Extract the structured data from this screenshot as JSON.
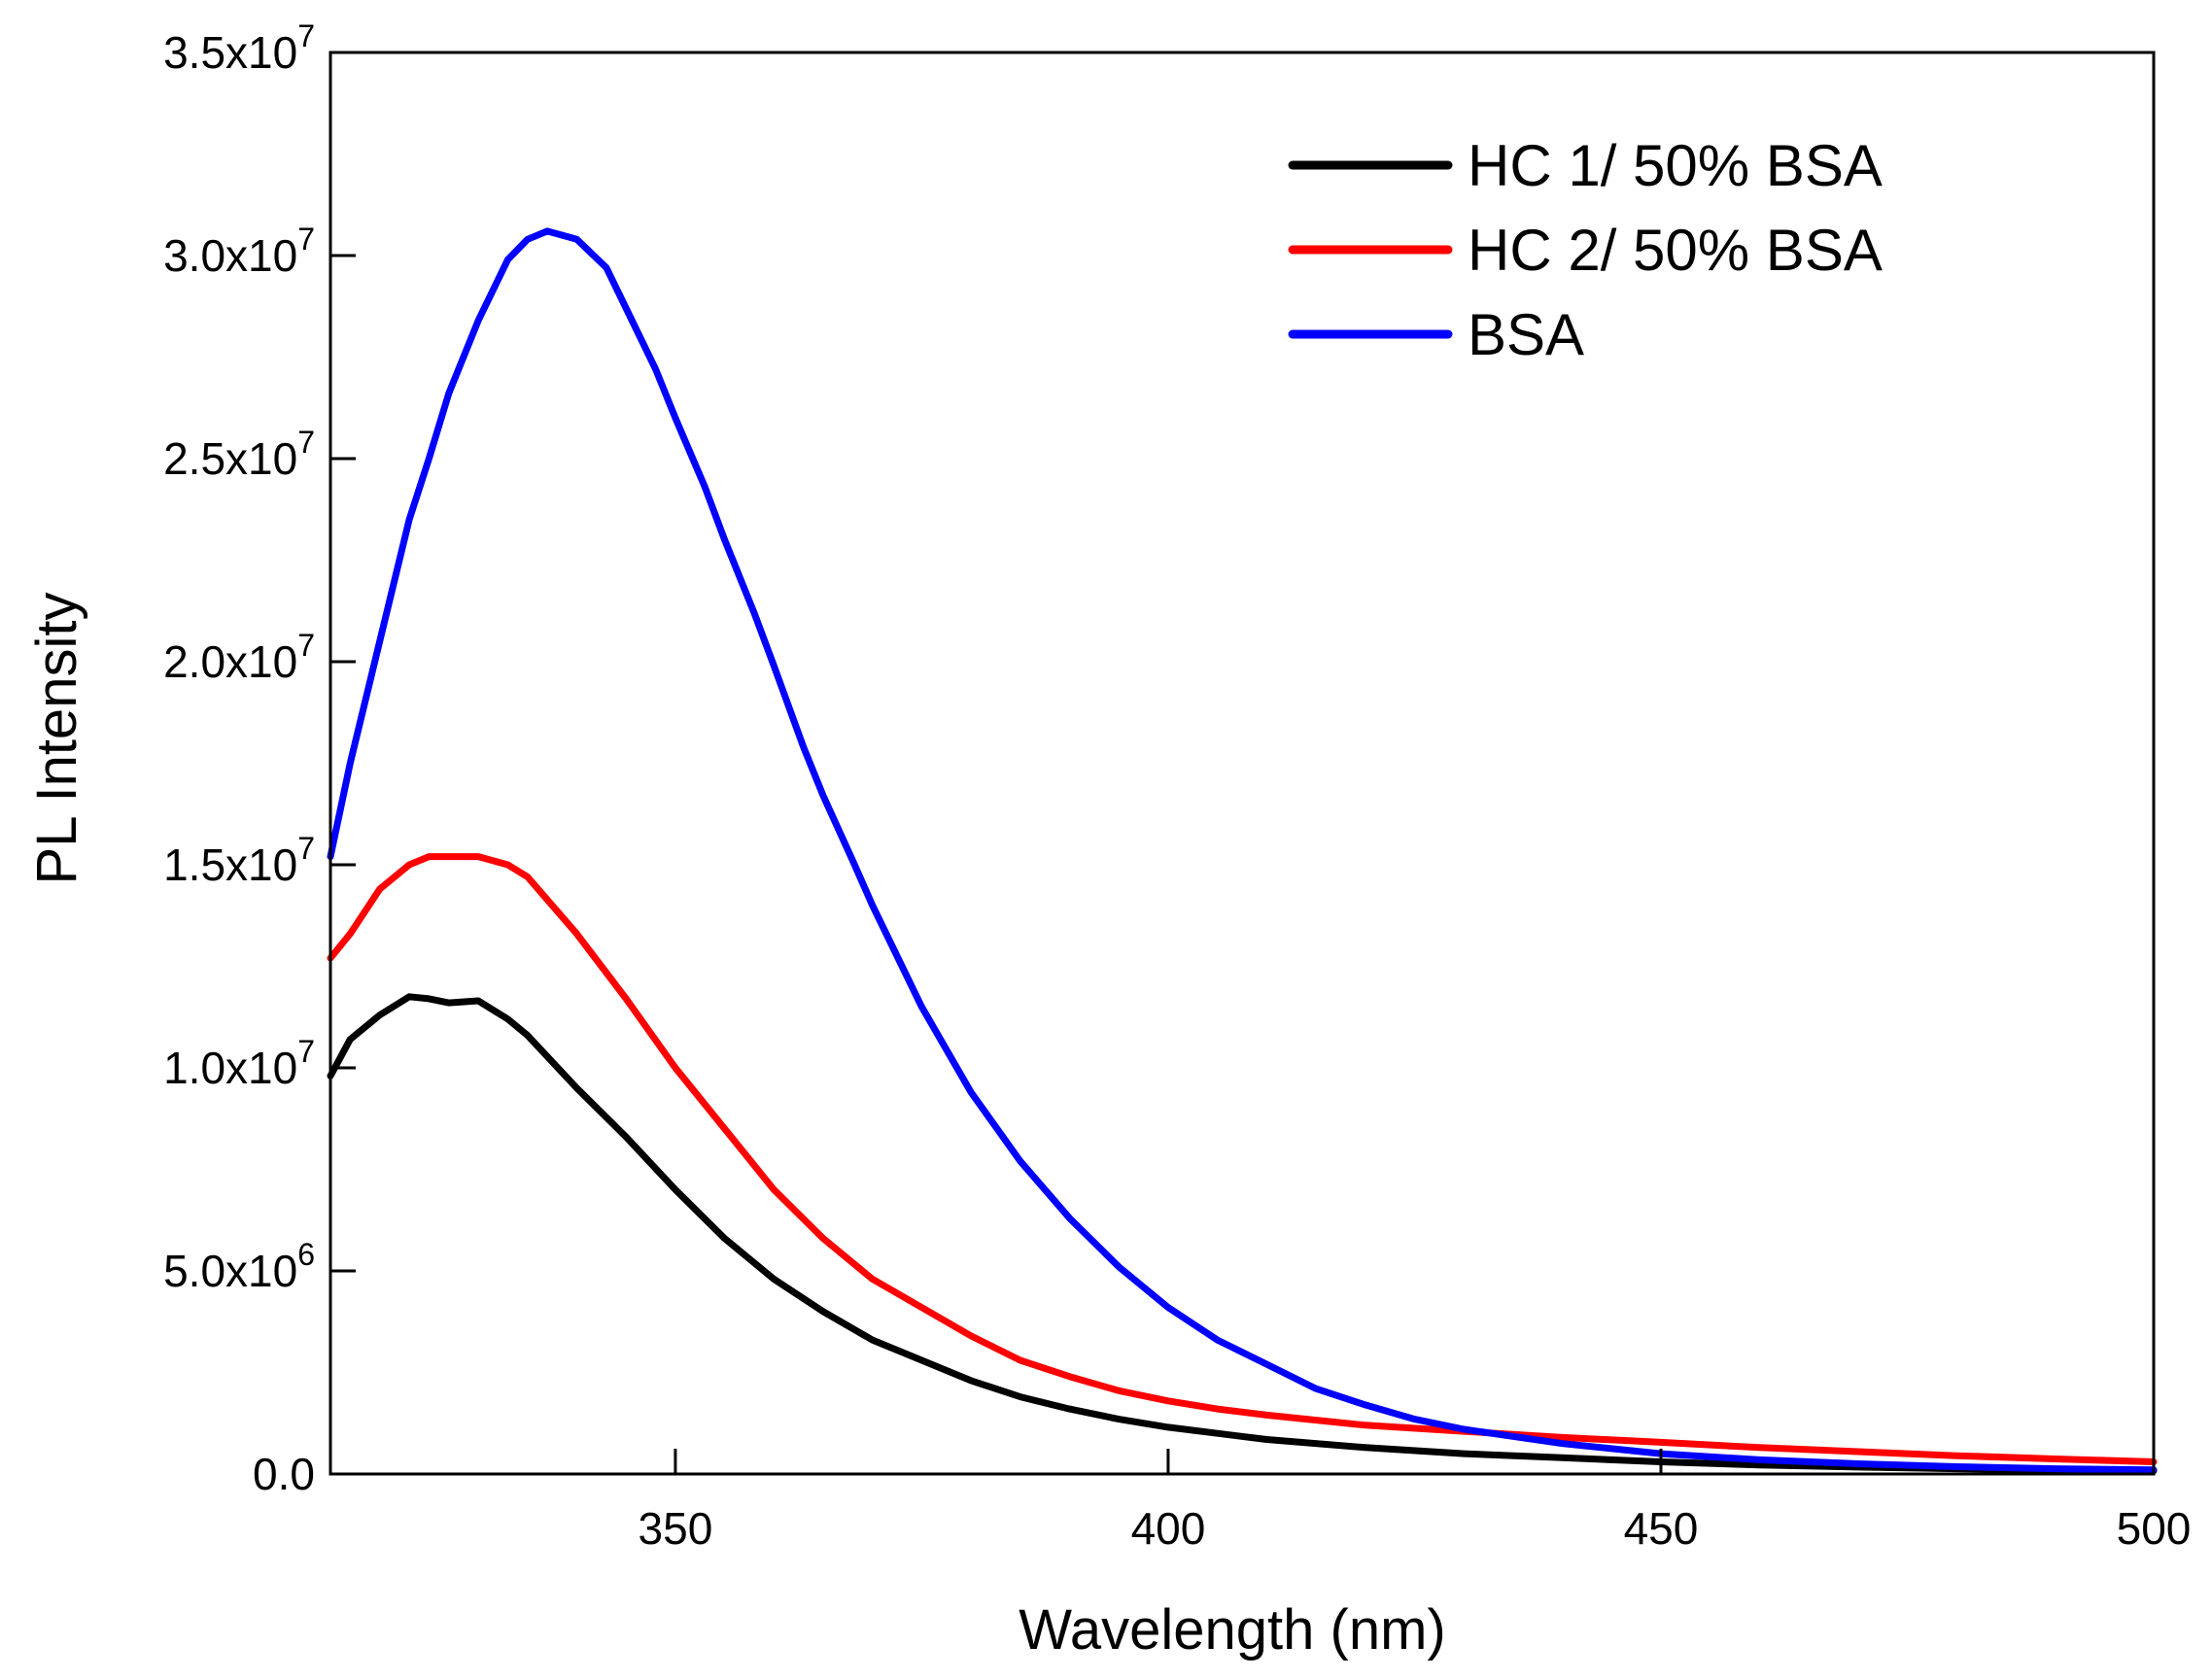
{
  "chart_data": {
    "type": "line",
    "title": "",
    "xlabel": "Wavelength (nm)",
    "ylabel": "PL Intensity",
    "xlim": [
      315,
      500
    ],
    "ylim": [
      0,
      35000000
    ],
    "xticks": [
      350,
      400,
      450,
      500
    ],
    "xtick_labels": [
      "350",
      "400",
      "450",
      "500"
    ],
    "yticks": [
      {
        "value": 0,
        "mantissa": "0.0",
        "exp": ""
      },
      {
        "value": 5000000,
        "mantissa": "5.0x10",
        "exp": "6"
      },
      {
        "value": 10000000,
        "mantissa": "1.0x10",
        "exp": "7"
      },
      {
        "value": 15000000,
        "mantissa": "1.5x10",
        "exp": "7"
      },
      {
        "value": 20000000,
        "mantissa": "2.0x10",
        "exp": "7"
      },
      {
        "value": 25000000,
        "mantissa": "2.5x10",
        "exp": "7"
      },
      {
        "value": 30000000,
        "mantissa": "3.0x10",
        "exp": "7"
      },
      {
        "value": 35000000,
        "mantissa": "3.5x10",
        "exp": "7"
      }
    ],
    "grid": false,
    "legend_position": "top-right",
    "series": [
      {
        "name": "HC 1/ 50% BSA",
        "color": "#000000",
        "points": [
          [
            315,
            9800000.0
          ],
          [
            317,
            10700000.0
          ],
          [
            320,
            11300000.0
          ],
          [
            323,
            11750000.0
          ],
          [
            325,
            11700000.0
          ],
          [
            327,
            11600000.0
          ],
          [
            330,
            11650000.0
          ],
          [
            333,
            11200000.0
          ],
          [
            335,
            10800000.0
          ],
          [
            340,
            9500000.0
          ],
          [
            345,
            8300000.0
          ],
          [
            350,
            7000000.0
          ],
          [
            355,
            5800000.0
          ],
          [
            360,
            4800000.0
          ],
          [
            365,
            4000000.0
          ],
          [
            370,
            3300000.0
          ],
          [
            375,
            2800000.0
          ],
          [
            380,
            2300000.0
          ],
          [
            385,
            1900000.0
          ],
          [
            390,
            1600000.0
          ],
          [
            395,
            1350000.0
          ],
          [
            400,
            1150000.0
          ],
          [
            405,
            1000000.0
          ],
          [
            410,
            850000.0
          ],
          [
            420,
            650000.0
          ],
          [
            430,
            500000.0
          ],
          [
            440,
            400000.0
          ],
          [
            450,
            300000.0
          ],
          [
            460,
            220000.0
          ],
          [
            470,
            170000.0
          ],
          [
            480,
            130000.0
          ],
          [
            490,
            100000.0
          ],
          [
            500,
            80000.0
          ]
        ]
      },
      {
        "name": "HC 2/ 50% BSA",
        "color": "#ff0000",
        "points": [
          [
            315,
            12700000.0
          ],
          [
            317,
            13300000.0
          ],
          [
            320,
            14400000.0
          ],
          [
            323,
            15000000.0
          ],
          [
            325,
            15200000.0
          ],
          [
            327,
            15200000.0
          ],
          [
            330,
            15200000.0
          ],
          [
            333,
            15000000.0
          ],
          [
            335,
            14700000.0
          ],
          [
            340,
            13300000.0
          ],
          [
            345,
            11700000.0
          ],
          [
            350,
            10000000.0
          ],
          [
            355,
            8500000.0
          ],
          [
            360,
            7000000.0
          ],
          [
            365,
            5800000.0
          ],
          [
            370,
            4800000.0
          ],
          [
            375,
            4100000.0
          ],
          [
            380,
            3400000.0
          ],
          [
            385,
            2800000.0
          ],
          [
            390,
            2400000.0
          ],
          [
            395,
            2050000.0
          ],
          [
            400,
            1800000.0
          ],
          [
            405,
            1600000.0
          ],
          [
            410,
            1450000.0
          ],
          [
            420,
            1200000.0
          ],
          [
            430,
            1050000.0
          ],
          [
            440,
            900000.0
          ],
          [
            450,
            780000.0
          ],
          [
            460,
            650000.0
          ],
          [
            470,
            550000.0
          ],
          [
            480,
            450000.0
          ],
          [
            490,
            370000.0
          ],
          [
            500,
            300000.0
          ]
        ]
      },
      {
        "name": "BSA",
        "color": "#0000ff",
        "points": [
          [
            315,
            15200000.0
          ],
          [
            317,
            17500000.0
          ],
          [
            320,
            20500000.0
          ],
          [
            323,
            23500000.0
          ],
          [
            325,
            25000000.0
          ],
          [
            327,
            26600000.0
          ],
          [
            330,
            28400000.0
          ],
          [
            333,
            29900000.0
          ],
          [
            335,
            30400000.0
          ],
          [
            337,
            30600000.0
          ],
          [
            340,
            30400000.0
          ],
          [
            343,
            29700000.0
          ],
          [
            345,
            28700000.0
          ],
          [
            348,
            27200000.0
          ],
          [
            350,
            26000000.0
          ],
          [
            353,
            24300000.0
          ],
          [
            355,
            23000000.0
          ],
          [
            358,
            21200000.0
          ],
          [
            360,
            19900000.0
          ],
          [
            363,
            17900000.0
          ],
          [
            365,
            16700000.0
          ],
          [
            368,
            15100000.0
          ],
          [
            370,
            14000000.0
          ],
          [
            375,
            11500000.0
          ],
          [
            380,
            9400000.0
          ],
          [
            385,
            7700000.0
          ],
          [
            390,
            6300000.0
          ],
          [
            395,
            5100000.0
          ],
          [
            400,
            4100000.0
          ],
          [
            405,
            3300000.0
          ],
          [
            410,
            2700000.0
          ],
          [
            415,
            2100000.0
          ],
          [
            420,
            1700000.0
          ],
          [
            425,
            1350000.0
          ],
          [
            430,
            1100000.0
          ],
          [
            440,
            750000.0
          ],
          [
            450,
            500000.0
          ],
          [
            460,
            350000.0
          ],
          [
            470,
            250000.0
          ],
          [
            480,
            180000.0
          ],
          [
            490,
            130000.0
          ],
          [
            500,
            100000.0
          ]
        ]
      }
    ]
  }
}
